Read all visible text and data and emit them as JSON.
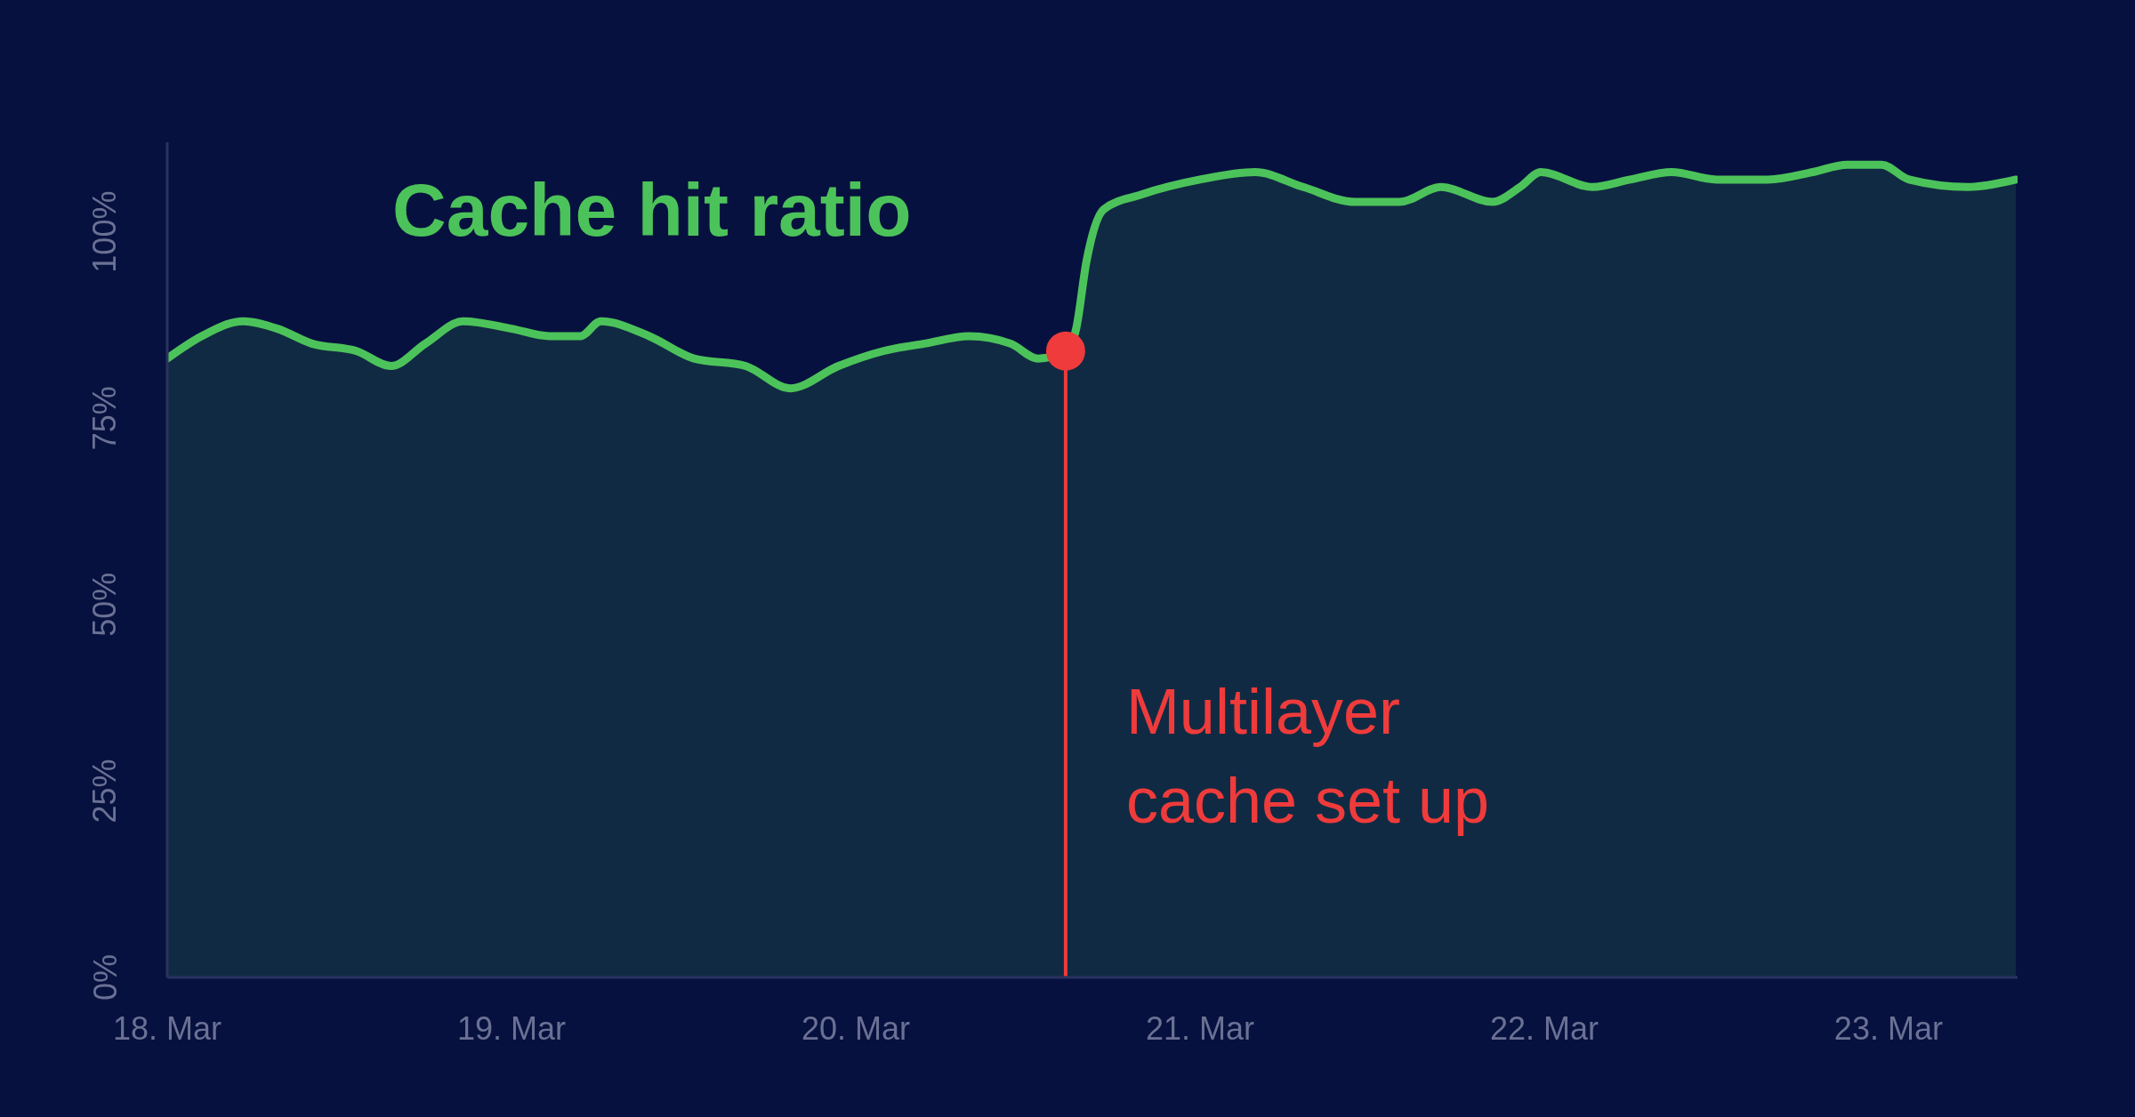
{
  "chart_data": {
    "type": "area",
    "title": "Cache hit ratio",
    "series": [
      {
        "color": "#4cc35a",
        "x": [
          "--03-18T00:00",
          "--03-18T02:24",
          "--03-18T05:17",
          "--03-18T07:41",
          "--03-18T10:05",
          "--03-18T13:12",
          "--03-18T15:36",
          "--03-18T18:00",
          "--03-18T20:38",
          "--03-19T00:00",
          "--03-19T02:38",
          "--03-19T04:48",
          "--03-19T06:14",
          "--03-19T09:36",
          "--03-19T12:43",
          "--03-19T16:19",
          "--03-19T19:26",
          "--03-19T22:48",
          "--03-20T01:55",
          "--03-20T04:48",
          "--03-20T07:55",
          "--03-20T10:48",
          "--03-20T12:43",
          "--03-20T14:38",
          "--03-20T15:22",
          "--03-20T16:05",
          "--03-20T17:17",
          "--03-20T19:55",
          "--03-21T00:00",
          "--03-21T03:50",
          "--03-21T07:12",
          "--03-21T10:48",
          "--03-21T13:55",
          "--03-21T16:48",
          "--03-21T20:24",
          "--03-21T22:19",
          "--03-21T23:46",
          "--03-22T03:22",
          "--03-22T06:00",
          "--03-22T08:53",
          "--03-22T12:00",
          "--03-22T15:36",
          "--03-22T18:43",
          "--03-22T21:07",
          "--03-22T23:31",
          "--03-23T01:26",
          "--03-23T05:31",
          "--03-23T08:53"
        ],
        "values": [
          83,
          86,
          88,
          87,
          85,
          84,
          82,
          85,
          88,
          87,
          86,
          86,
          88,
          86,
          83,
          82,
          79,
          82,
          84,
          85,
          86,
          85,
          83,
          84,
          87,
          96,
          103,
          105,
          107,
          108,
          106,
          104,
          104,
          106,
          104,
          106,
          108,
          106,
          107,
          108,
          107,
          107,
          108,
          109,
          109,
          107,
          106,
          107
        ]
      },
      {
        "type": "scatter",
        "color": "#ef3b3b",
        "x": [
          "--03-20T14:38"
        ],
        "values": [
          84
        ]
      }
    ],
    "xlim": [
      "--03-18T00:00",
      "--03-23T09:00"
    ],
    "xticks": [
      {
        "value": "--03-18",
        "label": "18. Mar"
      },
      {
        "value": "--03-19",
        "label": "19. Mar"
      },
      {
        "value": "--03-20",
        "label": "20. Mar"
      },
      {
        "value": "--03-21",
        "label": "21. Mar"
      },
      {
        "value": "--03-22",
        "label": "22. Mar"
      },
      {
        "value": "--03-23",
        "label": "23. Mar"
      }
    ],
    "ylim": [
      0,
      112
    ],
    "yticks": [
      {
        "value": 0,
        "label": "0%"
      },
      {
        "value": 25,
        "label": "25%"
      },
      {
        "value": 50,
        "label": "50%"
      },
      {
        "value": 75,
        "label": "75%"
      },
      {
        "value": 100,
        "label": "100%"
      }
    ],
    "grid": false,
    "ref_lines": [
      {
        "axis": "x",
        "value": "--03-20T14:38",
        "label": "Multilayer cache set up",
        "color": "#ef3b3b"
      }
    ]
  }
}
